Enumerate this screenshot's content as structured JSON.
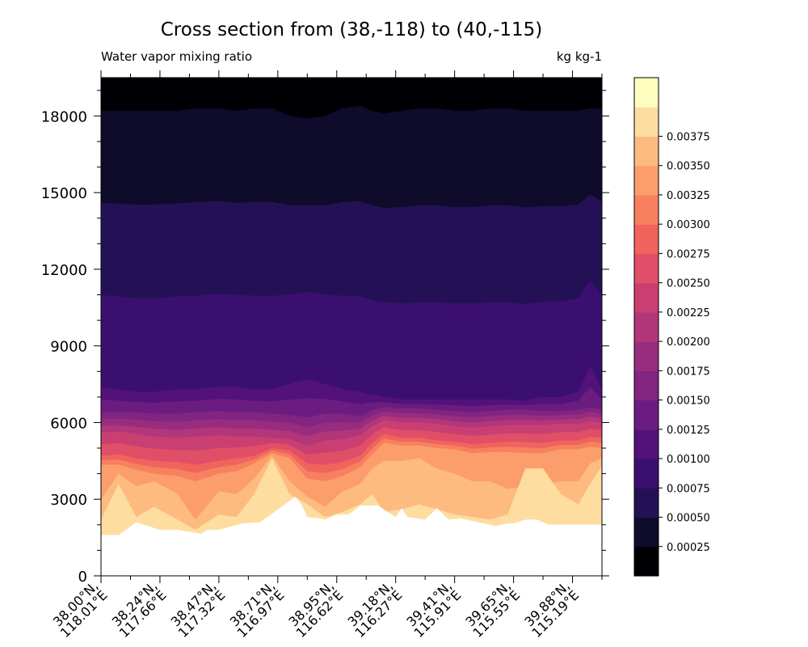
{
  "chart_data": {
    "type": "contour",
    "title": "Cross section from (38,-118) to (40,-115)",
    "left_title": "Water vapor mixing ratio",
    "right_title": "kg kg-1",
    "ylim": [
      0,
      19500
    ],
    "yticks": [
      0,
      3000,
      6000,
      9000,
      12000,
      15000,
      18000
    ],
    "yticks_minor": [
      1000,
      2000,
      4000,
      5000,
      7000,
      8000,
      10000,
      11000,
      13000,
      14000,
      16000,
      17000,
      19000
    ],
    "xtick_labels": [
      [
        "38.00°N,",
        "118.01°E"
      ],
      [
        "38.24°N,",
        "117.66°E"
      ],
      [
        "38.47°N,",
        "117.32°E"
      ],
      [
        "38.71°N,",
        "116.97°E"
      ],
      [
        "38.95°N,",
        "116.62°E"
      ],
      [
        "39.18°N,",
        "116.27°E"
      ],
      [
        "39.41°N,",
        "115.91°E"
      ],
      [
        "39.65°N,",
        "115.55°E"
      ],
      [
        "39.88°N,",
        "115.19°E"
      ]
    ],
    "xtick_index": [
      0,
      10,
      20,
      30,
      40,
      50,
      60,
      70,
      80
    ],
    "n_points": 86,
    "colorbar": {
      "labels": [
        "0.00025",
        "0.00050",
        "0.00075",
        "0.00100",
        "0.00125",
        "0.00150",
        "0.00175",
        "0.00200",
        "0.00225",
        "0.00250",
        "0.00275",
        "0.00300",
        "0.00325",
        "0.00350",
        "0.00375"
      ],
      "colors": [
        "#000004",
        "#0f0b2b",
        "#241155",
        "#3b0f70",
        "#53127a",
        "#6a1c81",
        "#812581",
        "#982d80",
        "#b2367a",
        "#ca3f72",
        "#e04f67",
        "#f0645d",
        "#f7815e",
        "#fc9e6c",
        "#febb80",
        "#fddda0",
        "#fcfdbf"
      ]
    },
    "terrain": {
      "x": [
        0,
        3,
        6,
        10,
        13,
        17,
        18,
        20,
        24,
        27,
        30,
        33,
        34,
        35,
        37,
        38,
        40,
        42,
        44,
        47,
        50,
        51,
        52,
        55,
        57,
        59,
        61,
        64,
        67,
        69,
        70,
        72,
        74,
        76,
        80,
        84,
        85
      ],
      "z": [
        1600,
        1600,
        2100,
        1800,
        1800,
        1650,
        1800,
        1800,
        2050,
        2100,
        2600,
        3100,
        2800,
        2300,
        2250,
        2200,
        2400,
        2400,
        2750,
        2750,
        2300,
        2650,
        2300,
        2200,
        2650,
        2200,
        2250,
        2100,
        1950,
        2050,
        2050,
        2200,
        2200,
        2000,
        2000,
        2000,
        2000
      ]
    },
    "profile": {
      "x": [
        0,
        3,
        6,
        9,
        13,
        16,
        20,
        23,
        26,
        29,
        32,
        35,
        38,
        41,
        44,
        46,
        48,
        51,
        54,
        57,
        60,
        63,
        66,
        69,
        72,
        75,
        78,
        81,
        83,
        85
      ],
      "t_top": [
        18200,
        18200,
        18200,
        18200,
        18200,
        18300,
        18300,
        18200,
        18300,
        18300,
        18000,
        17900,
        18000,
        18300,
        18400,
        18200,
        18100,
        18200,
        18300,
        18300,
        18200,
        18200,
        18300,
        18300,
        18200,
        18200,
        18200,
        18200,
        18300,
        18300
      ],
      "t_6": [
        7400,
        7300,
        7200,
        7200,
        7300,
        7300,
        7400,
        7400,
        7300,
        7300,
        7500,
        7700,
        7500,
        7300,
        7200,
        7100,
        7000,
        6900,
        6900,
        6900,
        6900,
        6900,
        6900,
        6900,
        6850,
        7000,
        7000,
        7200,
        8200,
        7300
      ],
      "t_5": [
        6400,
        6400,
        6400,
        6350,
        6350,
        6400,
        6450,
        6400,
        6400,
        6350,
        6300,
        6200,
        6350,
        6350,
        6250,
        6500,
        6600,
        6550,
        6550,
        6500,
        6450,
        6400,
        6450,
        6500,
        6500,
        6450,
        6450,
        6500,
        6600,
        6500
      ],
      "t_4": [
        5600,
        5650,
        5550,
        5450,
        5400,
        5450,
        5500,
        5450,
        5450,
        5400,
        5350,
        5100,
        5300,
        5350,
        5500,
        5850,
        6100,
        6000,
        6000,
        5950,
        5850,
        5800,
        5850,
        5900,
        5900,
        5900,
        5950,
        5950,
        6050,
        6000
      ],
      "t_3": [
        4700,
        4750,
        4600,
        4500,
        4450,
        4350,
        4500,
        4600,
        4700,
        5000,
        4900,
        4400,
        4350,
        4450,
        4700,
        5200,
        5550,
        5400,
        5400,
        5300,
        5250,
        5150,
        5200,
        5250,
        5250,
        5200,
        5300,
        5300,
        5450,
        5400
      ],
      "t_2": [
        4350,
        4350,
        4150,
        4000,
        3900,
        3700,
        4000,
        4100,
        4400,
        4800,
        4600,
        3800,
        3700,
        3900,
        4250,
        4750,
        5200,
        5100,
        5100,
        5000,
        4950,
        4800,
        4850,
        4850,
        4800,
        4800,
        4950,
        4950,
        5050,
        5000
      ],
      "t_1": [
        3000,
        4000,
        3500,
        3700,
        3200,
        2200,
        3300,
        3200,
        3800,
        4700,
        3700,
        3100,
        2700,
        3300,
        3600,
        4200,
        4500,
        4500,
        4600,
        4200,
        4000,
        3700,
        3700,
        3400,
        3500,
        3600,
        3700,
        3700,
        4400,
        4600
      ],
      "t_0": [
        2200,
        3600,
        2300,
        2700,
        2200,
        1800,
        2400,
        2300,
        3200,
        4600,
        3200,
        2800,
        2300,
        2500,
        2800,
        3200,
        2500,
        2600,
        2800,
        2600,
        2400,
        2300,
        2200,
        2400,
        4200,
        4200,
        3200,
        2800,
        3600,
        4300
      ]
    }
  }
}
